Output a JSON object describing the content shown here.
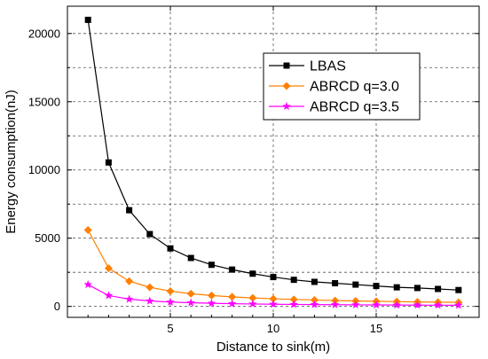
{
  "chart_data": {
    "type": "line",
    "xlabel": "Distance to sink(m)",
    "ylabel": "Energy consumption(nJ)",
    "xlim": [
      0,
      20
    ],
    "ylim": [
      -800,
      22000
    ],
    "xticks": [
      5,
      10,
      15
    ],
    "xtick_labels": [
      "5",
      "10",
      "15"
    ],
    "yticks": [
      0,
      5000,
      10000,
      15000,
      20000
    ],
    "ytick_labels": [
      "0",
      "5000",
      "10000",
      "15000",
      "20000"
    ],
    "grid": true,
    "legend_position": "top-right",
    "x": [
      1,
      2,
      3,
      4,
      5,
      6,
      7,
      8,
      9,
      10,
      11,
      12,
      13,
      14,
      15,
      16,
      17,
      18,
      19
    ],
    "series": [
      {
        "name": "LBAS",
        "color": "#000000",
        "marker": "square",
        "values": [
          21000,
          10550,
          7050,
          5300,
          4250,
          3550,
          3050,
          2700,
          2400,
          2150,
          1950,
          1800,
          1700,
          1600,
          1500,
          1400,
          1350,
          1280,
          1200
        ]
      },
      {
        "name": "ABRCD q=3.0",
        "color": "#ff8000",
        "marker": "diamond",
        "values": [
          5600,
          2800,
          1850,
          1400,
          1120,
          930,
          800,
          700,
          620,
          560,
          510,
          470,
          430,
          400,
          375,
          350,
          330,
          310,
          300
        ]
      },
      {
        "name": "ABRCD q=3.5",
        "color": "#ff00ff",
        "marker": "star",
        "values": [
          1600,
          800,
          530,
          400,
          320,
          270,
          230,
          200,
          180,
          160,
          145,
          135,
          125,
          115,
          108,
          100,
          95,
          90,
          85
        ]
      }
    ]
  }
}
